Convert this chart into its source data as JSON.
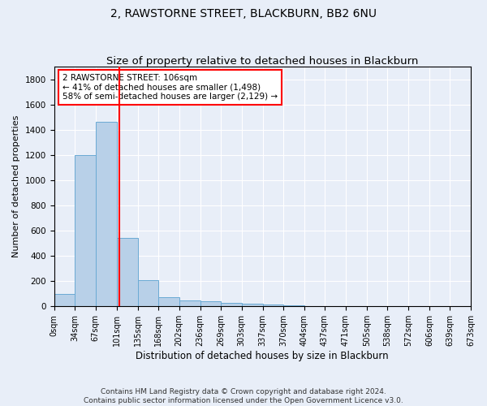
{
  "title": "2, RAWSTORNE STREET, BLACKBURN, BB2 6NU",
  "subtitle": "Size of property relative to detached houses in Blackburn",
  "xlabel": "Distribution of detached houses by size in Blackburn",
  "ylabel": "Number of detached properties",
  "bar_color": "#b8d0e8",
  "bar_edge_color": "#6aaad4",
  "background_color": "#e8eef8",
  "grid_color": "#ffffff",
  "vline_x": 106,
  "vline_color": "red",
  "bin_edges": [
    0,
    34,
    67,
    101,
    135,
    168,
    202,
    236,
    269,
    303,
    337,
    370,
    404,
    437,
    471,
    505,
    538,
    572,
    606,
    639,
    673
  ],
  "bin_labels": [
    "0sqm",
    "34sqm",
    "67sqm",
    "101sqm",
    "135sqm",
    "168sqm",
    "202sqm",
    "236sqm",
    "269sqm",
    "303sqm",
    "337sqm",
    "370sqm",
    "404sqm",
    "437sqm",
    "471sqm",
    "505sqm",
    "538sqm",
    "572sqm",
    "606sqm",
    "639sqm",
    "673sqm"
  ],
  "bar_heights": [
    95,
    1200,
    1465,
    540,
    205,
    70,
    48,
    38,
    30,
    18,
    13,
    5,
    0,
    0,
    0,
    0,
    0,
    0,
    0,
    0
  ],
  "ylim": [
    0,
    1900
  ],
  "yticks": [
    0,
    200,
    400,
    600,
    800,
    1000,
    1200,
    1400,
    1600,
    1800
  ],
  "annotation_text": "2 RAWSTORNE STREET: 106sqm\n← 41% of detached houses are smaller (1,498)\n58% of semi-detached houses are larger (2,129) →",
  "annotation_box_color": "white",
  "annotation_box_edge": "red",
  "footer_text": "Contains HM Land Registry data © Crown copyright and database right 2024.\nContains public sector information licensed under the Open Government Licence v3.0.",
  "title_fontsize": 10,
  "subtitle_fontsize": 9.5,
  "xlabel_fontsize": 8.5,
  "ylabel_fontsize": 8,
  "annotation_fontsize": 7.5,
  "footer_fontsize": 6.5,
  "tick_fontsize": 7
}
